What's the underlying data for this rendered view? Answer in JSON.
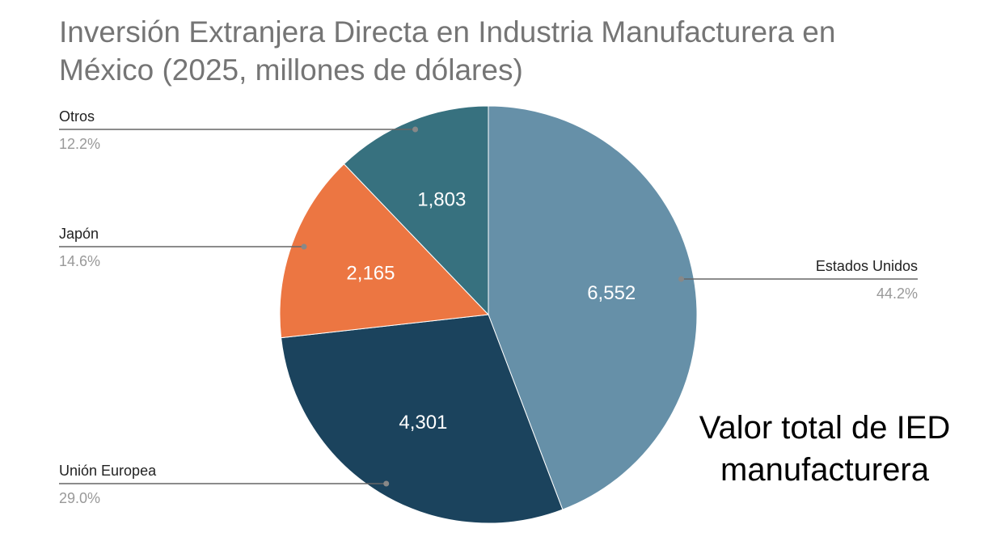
{
  "chart_data": {
    "type": "pie",
    "title": "Inversión Extranjera Directa en Industria Manufacturera en México (2025, millones de dólares)",
    "slices": [
      {
        "label": "Estados Unidos",
        "value": 6552,
        "value_label": "6,552",
        "percent": "44.2%",
        "color": "#6690A8"
      },
      {
        "label": "Unión Europea",
        "value": 4301,
        "value_label": "4,301",
        "percent": "29.0%",
        "color": "#1B435D"
      },
      {
        "label": "Japón",
        "value": 2165,
        "value_label": "2,165",
        "percent": "14.6%",
        "color": "#EC7642"
      },
      {
        "label": "Otros",
        "value": 1803,
        "value_label": "1,803",
        "percent": "12.2%",
        "color": "#37717F"
      }
    ],
    "legend": "leader-lines",
    "annotation": "Valor total de IED manufacturera"
  }
}
